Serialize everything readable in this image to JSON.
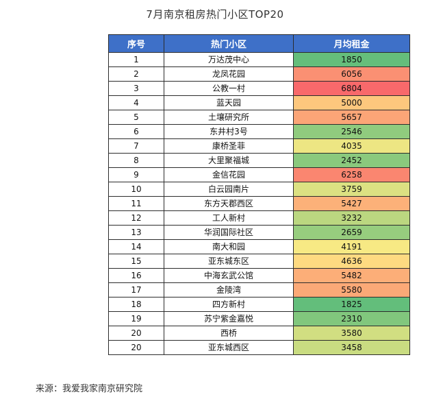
{
  "title": "7月南京租房热门小区TOP20",
  "source": "来源：我爱我家南京研究院",
  "colors": {
    "header_bg": "#3e70c8",
    "header_text": "#ffffff",
    "scale_low": "#63be7b",
    "scale_mid": "#ffeb84",
    "scale_high": "#f8696b"
  },
  "chart_data": {
    "type": "table",
    "title": "7月南京租房热门小区TOP20",
    "columns": [
      "序号",
      "热门小区",
      "月均租金"
    ],
    "rows": [
      {
        "rank": "1",
        "name": "万达茂中心",
        "rent": 1850
      },
      {
        "rank": "2",
        "name": "龙凤花园",
        "rent": 6056
      },
      {
        "rank": "3",
        "name": "公教一村",
        "rent": 6804
      },
      {
        "rank": "4",
        "name": "蓝天园",
        "rent": 5000
      },
      {
        "rank": "5",
        "name": "土壤研究所",
        "rent": 5657
      },
      {
        "rank": "6",
        "name": "东井村3号",
        "rent": 2546
      },
      {
        "rank": "7",
        "name": "康桥圣菲",
        "rent": 4035
      },
      {
        "rank": "8",
        "name": "大里聚福城",
        "rent": 2452
      },
      {
        "rank": "9",
        "name": "金信花园",
        "rent": 6258
      },
      {
        "rank": "10",
        "name": "白云园南片",
        "rent": 3759
      },
      {
        "rank": "11",
        "name": "东方天郡西区",
        "rent": 5427
      },
      {
        "rank": "12",
        "name": "工人新村",
        "rent": 3232
      },
      {
        "rank": "13",
        "name": "华润国际社区",
        "rent": 2659
      },
      {
        "rank": "14",
        "name": "南大和园",
        "rent": 4191
      },
      {
        "rank": "15",
        "name": "亚东城东区",
        "rent": 4636
      },
      {
        "rank": "16",
        "name": "中海玄武公馆",
        "rent": 5482
      },
      {
        "rank": "17",
        "name": "金陵湾",
        "rent": 5580
      },
      {
        "rank": "18",
        "name": "四方新村",
        "rent": 1825
      },
      {
        "rank": "19",
        "name": "苏宁紫金嘉悦",
        "rent": 2310
      },
      {
        "rank": "20",
        "name": "西桥",
        "rent": 3580
      },
      {
        "rank": "20",
        "name": "亚东城西区",
        "rent": 3458
      }
    ]
  }
}
